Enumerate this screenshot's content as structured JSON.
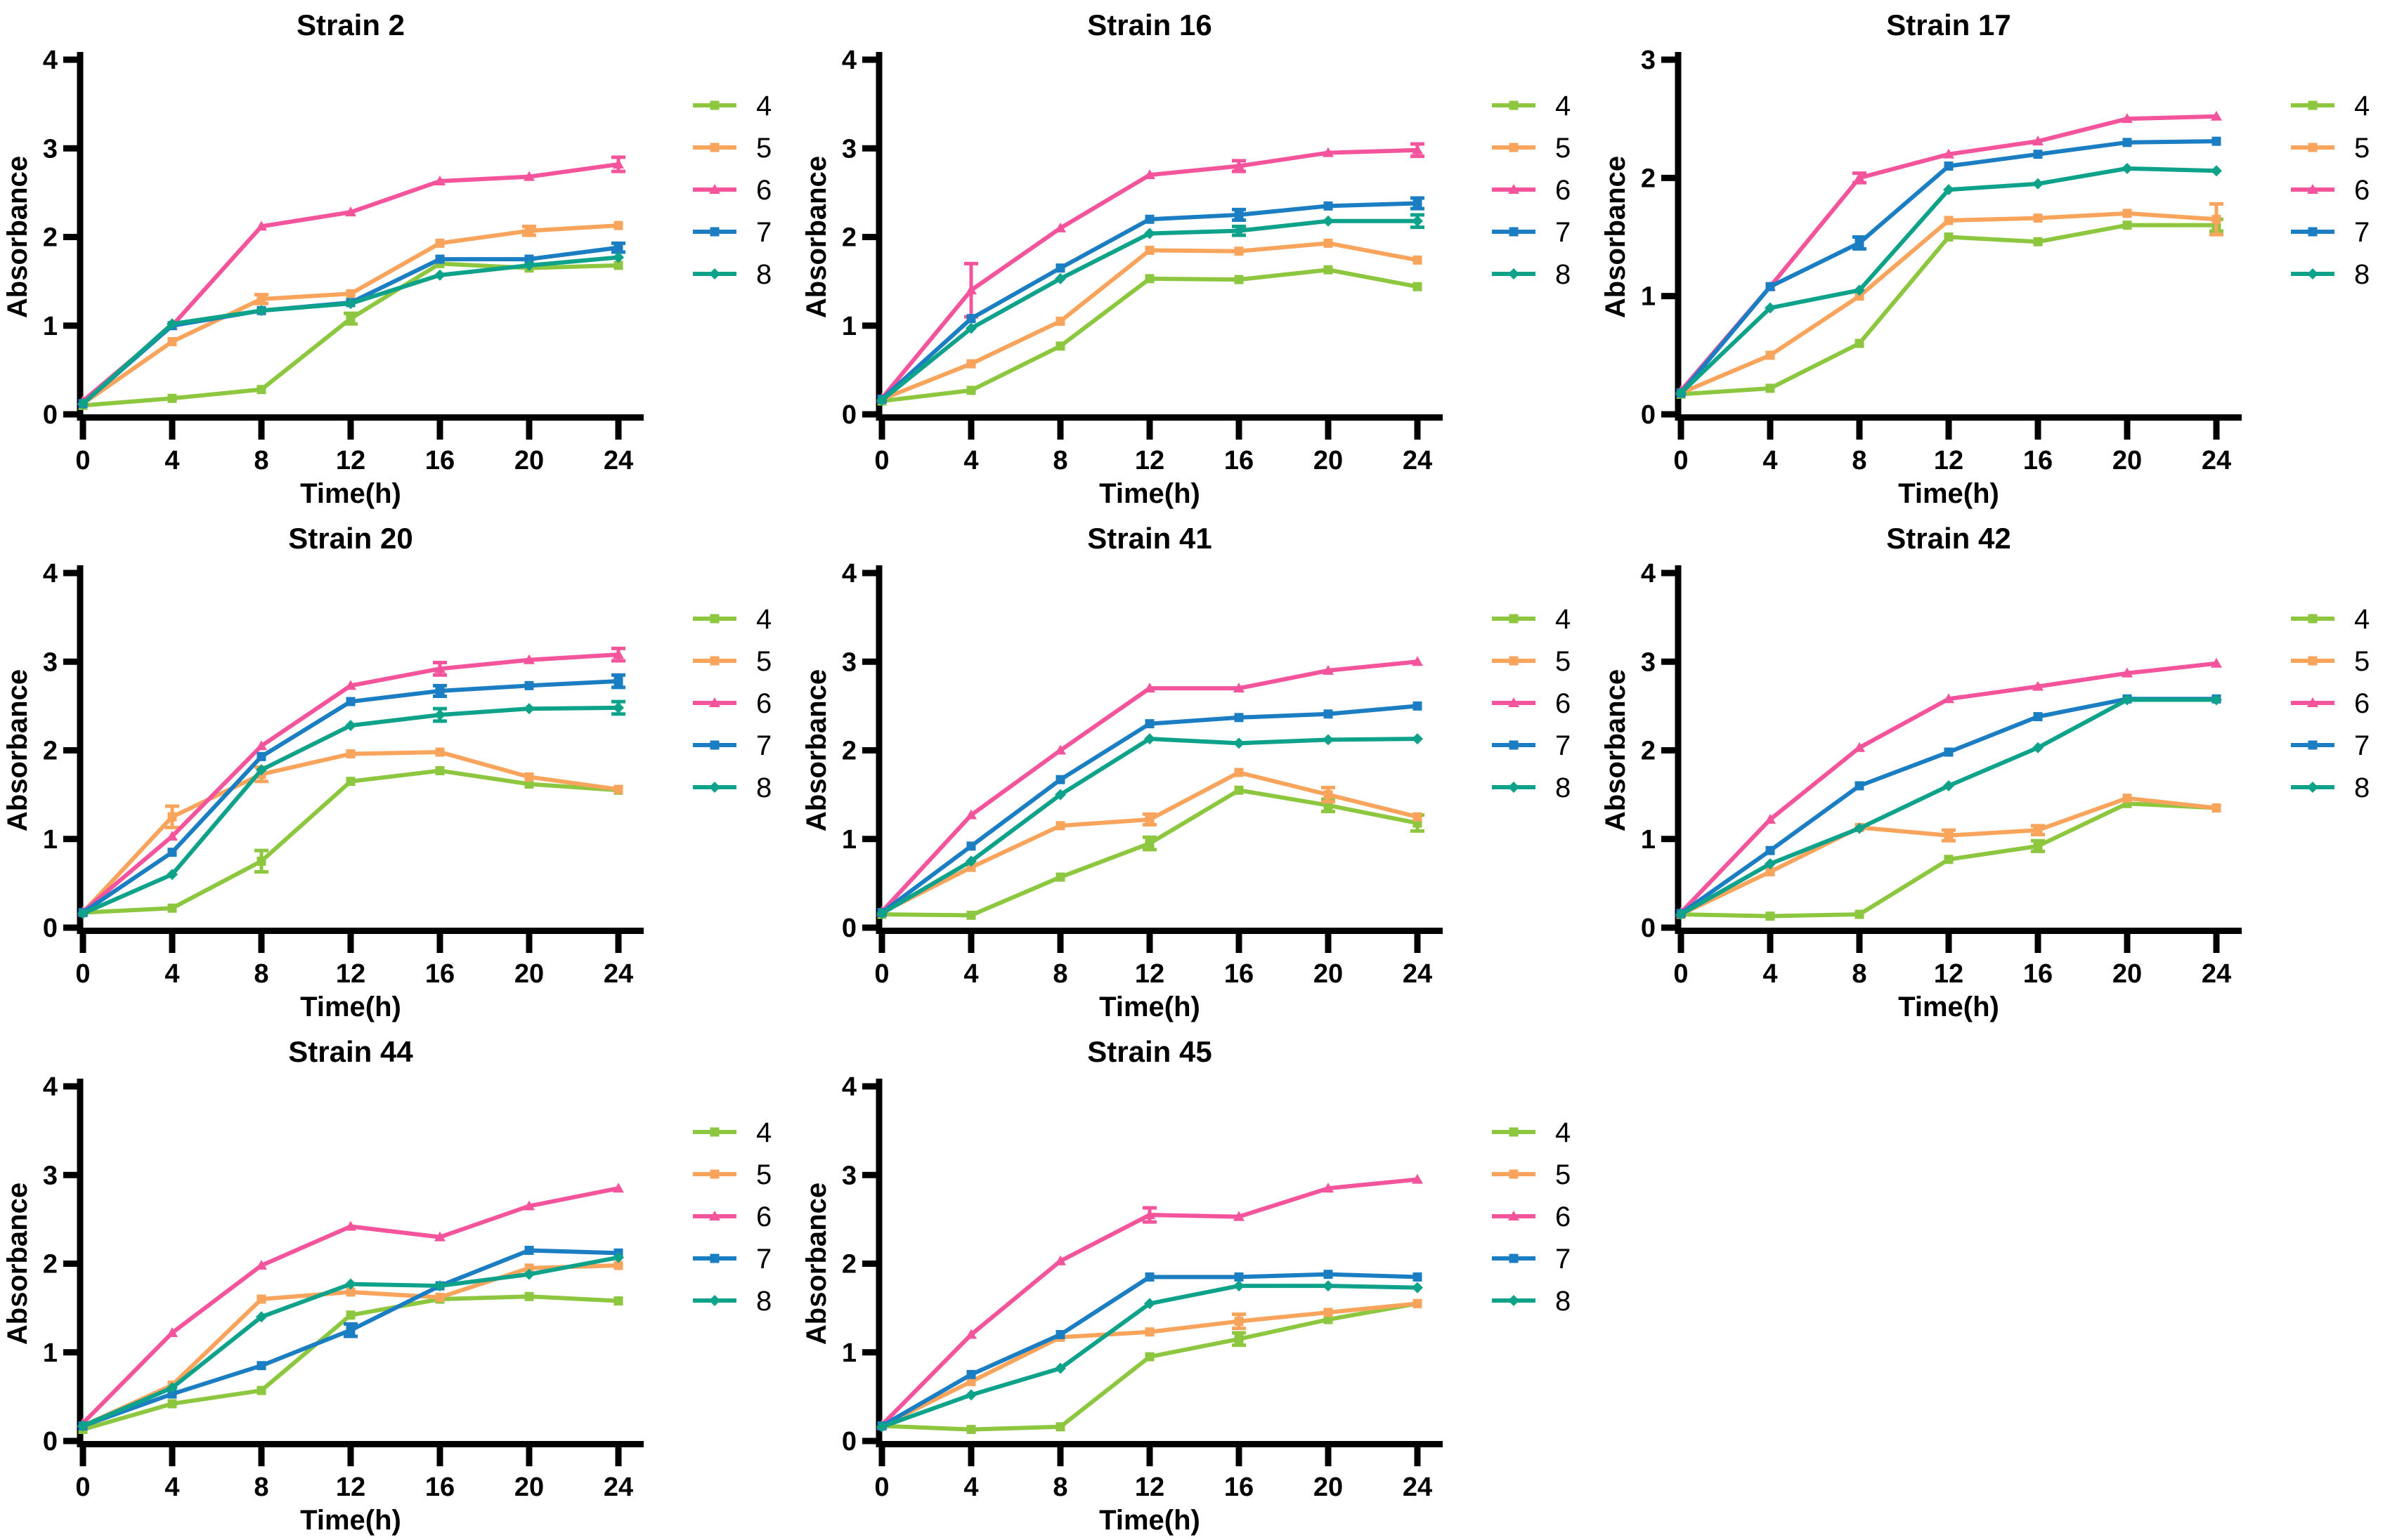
{
  "page": {
    "background": "#ffffff",
    "ylabel": "Absorbance",
    "xlabel": "Time(h)",
    "legend_labels": [
      "4",
      "5",
      "6",
      "7",
      "8"
    ],
    "series_colors": {
      "4": "#8dc63f",
      "5": "#f9a45c",
      "6": "#f3549b",
      "7": "#1b7ec2",
      "8": "#0fa28a"
    },
    "axis_color": "#000000"
  },
  "chart_data": [
    {
      "type": "line",
      "title": "Strain 2",
      "xlabel": "Time(h)",
      "ylabel": "Absorbance",
      "x": [
        0,
        4,
        8,
        12,
        16,
        20,
        24
      ],
      "xticks": [
        0,
        4,
        8,
        12,
        16,
        20,
        24
      ],
      "ylim": [
        0,
        4
      ],
      "yticks": [
        0,
        1,
        2,
        3,
        4
      ],
      "legend_position": "right",
      "series": [
        {
          "name": "4",
          "color": "#8dc63f",
          "marker": "square",
          "values": [
            0.1,
            0.18,
            0.28,
            1.08,
            1.7,
            1.65,
            1.68
          ],
          "err": {
            "12": 0.06
          }
        },
        {
          "name": "5",
          "color": "#f9a45c",
          "marker": "square",
          "values": [
            0.12,
            0.82,
            1.3,
            1.36,
            1.93,
            2.07,
            2.13
          ],
          "err": {
            "8": 0.05,
            "20": 0.05
          }
        },
        {
          "name": "6",
          "color": "#f3549b",
          "marker": "triangle",
          "values": [
            0.15,
            1.0,
            2.12,
            2.28,
            2.63,
            2.68,
            2.82
          ],
          "err": {
            "24": 0.08
          }
        },
        {
          "name": "7",
          "color": "#1b7ec2",
          "marker": "square",
          "values": [
            0.12,
            1.0,
            1.17,
            1.26,
            1.75,
            1.75,
            1.88
          ],
          "err": {
            "24": 0.05
          }
        },
        {
          "name": "8",
          "color": "#0fa28a",
          "marker": "diamond",
          "values": [
            0.12,
            1.02,
            1.17,
            1.25,
            1.57,
            1.68,
            1.77
          ],
          "err": {}
        }
      ]
    },
    {
      "type": "line",
      "title": "Strain 16",
      "xlabel": "Time(h)",
      "ylabel": "Absorbance",
      "x": [
        0,
        4,
        8,
        12,
        16,
        20,
        24
      ],
      "xticks": [
        0,
        4,
        8,
        12,
        16,
        20,
        24
      ],
      "ylim": [
        0,
        4
      ],
      "yticks": [
        0,
        1,
        2,
        3,
        4
      ],
      "legend_position": "right",
      "series": [
        {
          "name": "4",
          "color": "#8dc63f",
          "marker": "square",
          "values": [
            0.15,
            0.27,
            0.77,
            1.53,
            1.52,
            1.63,
            1.44
          ],
          "err": {}
        },
        {
          "name": "5",
          "color": "#f9a45c",
          "marker": "square",
          "values": [
            0.17,
            0.57,
            1.05,
            1.85,
            1.84,
            1.93,
            1.74
          ],
          "err": {}
        },
        {
          "name": "6",
          "color": "#f3549b",
          "marker": "triangle",
          "values": [
            0.18,
            1.4,
            2.1,
            2.7,
            2.8,
            2.95,
            2.98
          ],
          "err": {
            "4": 0.3,
            "16": 0.06,
            "24": 0.07
          }
        },
        {
          "name": "7",
          "color": "#1b7ec2",
          "marker": "square",
          "values": [
            0.17,
            1.08,
            1.65,
            2.2,
            2.25,
            2.35,
            2.38
          ],
          "err": {
            "16": 0.06,
            "24": 0.06
          }
        },
        {
          "name": "8",
          "color": "#0fa28a",
          "marker": "diamond",
          "values": [
            0.16,
            0.97,
            1.53,
            2.04,
            2.07,
            2.18,
            2.18
          ],
          "err": {
            "16": 0.05,
            "24": 0.07
          }
        }
      ]
    },
    {
      "type": "line",
      "title": "Strain 17",
      "xlabel": "Time(h)",
      "ylabel": "Absorbance",
      "x": [
        0,
        4,
        8,
        12,
        16,
        20,
        24
      ],
      "xticks": [
        0,
        4,
        8,
        12,
        16,
        20,
        24
      ],
      "ylim": [
        0,
        3
      ],
      "yticks": [
        0,
        1,
        2,
        3
      ],
      "legend_position": "right",
      "series": [
        {
          "name": "4",
          "color": "#8dc63f",
          "marker": "square",
          "values": [
            0.17,
            0.22,
            0.6,
            1.5,
            1.46,
            1.6,
            1.6
          ],
          "err": {
            "24": 0.05
          }
        },
        {
          "name": "5",
          "color": "#f9a45c",
          "marker": "square",
          "values": [
            0.18,
            0.5,
            1.0,
            1.64,
            1.66,
            1.7,
            1.65
          ],
          "err": {
            "24": 0.13
          }
        },
        {
          "name": "6",
          "color": "#f3549b",
          "marker": "triangle",
          "values": [
            0.2,
            1.08,
            2.0,
            2.2,
            2.31,
            2.5,
            2.52
          ],
          "err": {
            "8": 0.04
          }
        },
        {
          "name": "7",
          "color": "#1b7ec2",
          "marker": "square",
          "values": [
            0.18,
            1.08,
            1.45,
            2.1,
            2.2,
            2.3,
            2.31
          ],
          "err": {
            "8": 0.05
          }
        },
        {
          "name": "8",
          "color": "#0fa28a",
          "marker": "diamond",
          "values": [
            0.18,
            0.9,
            1.05,
            1.9,
            1.95,
            2.08,
            2.06
          ],
          "err": {}
        }
      ]
    },
    {
      "type": "line",
      "title": "Strain 20",
      "xlabel": "Time(h)",
      "ylabel": "Absorbance",
      "x": [
        0,
        4,
        8,
        12,
        16,
        20,
        24
      ],
      "xticks": [
        0,
        4,
        8,
        12,
        16,
        20,
        24
      ],
      "ylim": [
        0,
        4
      ],
      "yticks": [
        0,
        1,
        2,
        3,
        4
      ],
      "legend_position": "right",
      "series": [
        {
          "name": "4",
          "color": "#8dc63f",
          "marker": "square",
          "values": [
            0.17,
            0.22,
            0.75,
            1.65,
            1.77,
            1.62,
            1.55
          ],
          "err": {
            "8": 0.12
          }
        },
        {
          "name": "5",
          "color": "#f9a45c",
          "marker": "square",
          "values": [
            0.17,
            1.25,
            1.73,
            1.96,
            1.98,
            1.7,
            1.56
          ],
          "err": {
            "4": 0.12,
            "8": 0.08
          }
        },
        {
          "name": "6",
          "color": "#f3549b",
          "marker": "triangle",
          "values": [
            0.18,
            1.03,
            2.05,
            2.73,
            2.92,
            3.02,
            3.08
          ],
          "err": {
            "16": 0.07,
            "24": 0.07
          }
        },
        {
          "name": "7",
          "color": "#1b7ec2",
          "marker": "square",
          "values": [
            0.17,
            0.85,
            1.93,
            2.55,
            2.67,
            2.73,
            2.78
          ],
          "err": {
            "16": 0.06,
            "24": 0.07
          }
        },
        {
          "name": "8",
          "color": "#0fa28a",
          "marker": "diamond",
          "values": [
            0.16,
            0.6,
            1.78,
            2.28,
            2.4,
            2.47,
            2.48
          ],
          "err": {
            "16": 0.07,
            "24": 0.07
          }
        }
      ]
    },
    {
      "type": "line",
      "title": "Strain 41",
      "xlabel": "Time(h)",
      "ylabel": "Absorbance",
      "x": [
        0,
        4,
        8,
        12,
        16,
        20,
        24
      ],
      "xticks": [
        0,
        4,
        8,
        12,
        16,
        20,
        24
      ],
      "ylim": [
        0,
        4
      ],
      "yticks": [
        0,
        1,
        2,
        3,
        4
      ],
      "legend_position": "right",
      "series": [
        {
          "name": "4",
          "color": "#8dc63f",
          "marker": "square",
          "values": [
            0.15,
            0.14,
            0.57,
            0.95,
            1.55,
            1.38,
            1.18
          ],
          "err": {
            "12": 0.07,
            "20": 0.07,
            "24": 0.09
          }
        },
        {
          "name": "5",
          "color": "#f9a45c",
          "marker": "square",
          "values": [
            0.17,
            0.68,
            1.15,
            1.22,
            1.75,
            1.5,
            1.25
          ],
          "err": {
            "12": 0.06,
            "20": 0.08
          }
        },
        {
          "name": "6",
          "color": "#f3549b",
          "marker": "triangle",
          "values": [
            0.18,
            1.27,
            2.0,
            2.7,
            2.7,
            2.9,
            3.0
          ],
          "err": {}
        },
        {
          "name": "7",
          "color": "#1b7ec2",
          "marker": "square",
          "values": [
            0.17,
            0.92,
            1.67,
            2.3,
            2.37,
            2.41,
            2.5
          ],
          "err": {}
        },
        {
          "name": "8",
          "color": "#0fa28a",
          "marker": "diamond",
          "values": [
            0.16,
            0.75,
            1.5,
            2.13,
            2.08,
            2.12,
            2.13
          ],
          "err": {}
        }
      ]
    },
    {
      "type": "line",
      "title": "Strain 42",
      "xlabel": "Time(h)",
      "ylabel": "Absorbance",
      "x": [
        0,
        4,
        8,
        12,
        16,
        20,
        24
      ],
      "xticks": [
        0,
        4,
        8,
        12,
        16,
        20,
        24
      ],
      "ylim": [
        0,
        4
      ],
      "yticks": [
        0,
        1,
        2,
        3,
        4
      ],
      "legend_position": "right",
      "series": [
        {
          "name": "4",
          "color": "#8dc63f",
          "marker": "square",
          "values": [
            0.15,
            0.13,
            0.15,
            0.77,
            0.92,
            1.4,
            1.35
          ],
          "err": {
            "16": 0.06
          }
        },
        {
          "name": "5",
          "color": "#f9a45c",
          "marker": "square",
          "values": [
            0.15,
            0.63,
            1.13,
            1.04,
            1.1,
            1.46,
            1.35
          ],
          "err": {
            "12": 0.06,
            "16": 0.05
          }
        },
        {
          "name": "6",
          "color": "#f3549b",
          "marker": "triangle",
          "values": [
            0.17,
            1.22,
            2.03,
            2.58,
            2.72,
            2.87,
            2.98
          ],
          "err": {}
        },
        {
          "name": "7",
          "color": "#1b7ec2",
          "marker": "square",
          "values": [
            0.16,
            0.87,
            1.6,
            1.98,
            2.38,
            2.58,
            2.58
          ],
          "err": {}
        },
        {
          "name": "8",
          "color": "#0fa28a",
          "marker": "diamond",
          "values": [
            0.15,
            0.72,
            1.12,
            1.6,
            2.03,
            2.57,
            2.57
          ],
          "err": {}
        }
      ]
    },
    {
      "type": "line",
      "title": "Strain 44",
      "xlabel": "Time(h)",
      "ylabel": "Absorbance",
      "x": [
        0,
        4,
        8,
        12,
        16,
        20,
        24
      ],
      "xticks": [
        0,
        4,
        8,
        12,
        16,
        20,
        24
      ],
      "ylim": [
        0,
        4
      ],
      "yticks": [
        0,
        1,
        2,
        3,
        4
      ],
      "legend_position": "right",
      "series": [
        {
          "name": "4",
          "color": "#8dc63f",
          "marker": "square",
          "values": [
            0.13,
            0.42,
            0.57,
            1.42,
            1.6,
            1.63,
            1.58
          ],
          "err": {}
        },
        {
          "name": "5",
          "color": "#f9a45c",
          "marker": "square",
          "values": [
            0.17,
            0.63,
            1.6,
            1.68,
            1.62,
            1.95,
            1.98
          ],
          "err": {}
        },
        {
          "name": "6",
          "color": "#f3549b",
          "marker": "triangle",
          "values": [
            0.2,
            1.22,
            1.98,
            2.42,
            2.3,
            2.65,
            2.85
          ],
          "err": {}
        },
        {
          "name": "7",
          "color": "#1b7ec2",
          "marker": "square",
          "values": [
            0.17,
            0.53,
            0.85,
            1.25,
            1.75,
            2.15,
            2.12
          ],
          "err": {
            "12": 0.07
          }
        },
        {
          "name": "8",
          "color": "#0fa28a",
          "marker": "diamond",
          "values": [
            0.17,
            0.6,
            1.4,
            1.77,
            1.75,
            1.88,
            2.07
          ],
          "err": {}
        }
      ]
    },
    {
      "type": "line",
      "title": "Strain 45",
      "xlabel": "Time(h)",
      "ylabel": "Absorbance",
      "x": [
        0,
        4,
        8,
        12,
        16,
        20,
        24
      ],
      "xticks": [
        0,
        4,
        8,
        12,
        16,
        20,
        24
      ],
      "ylim": [
        0,
        4
      ],
      "yticks": [
        0,
        1,
        2,
        3,
        4
      ],
      "legend_position": "right",
      "series": [
        {
          "name": "4",
          "color": "#8dc63f",
          "marker": "square",
          "values": [
            0.17,
            0.13,
            0.16,
            0.95,
            1.15,
            1.37,
            1.55
          ],
          "err": {
            "16": 0.07
          }
        },
        {
          "name": "5",
          "color": "#f9a45c",
          "marker": "square",
          "values": [
            0.17,
            0.67,
            1.17,
            1.23,
            1.35,
            1.45,
            1.55
          ],
          "err": {
            "16": 0.08
          }
        },
        {
          "name": "6",
          "color": "#f3549b",
          "marker": "triangle",
          "values": [
            0.18,
            1.2,
            2.03,
            2.55,
            2.53,
            2.85,
            2.95
          ],
          "err": {
            "12": 0.08
          }
        },
        {
          "name": "7",
          "color": "#1b7ec2",
          "marker": "square",
          "values": [
            0.17,
            0.75,
            1.2,
            1.85,
            1.85,
            1.88,
            1.85
          ],
          "err": {}
        },
        {
          "name": "8",
          "color": "#0fa28a",
          "marker": "diamond",
          "values": [
            0.16,
            0.52,
            0.82,
            1.55,
            1.75,
            1.75,
            1.73
          ],
          "err": {}
        }
      ]
    }
  ]
}
